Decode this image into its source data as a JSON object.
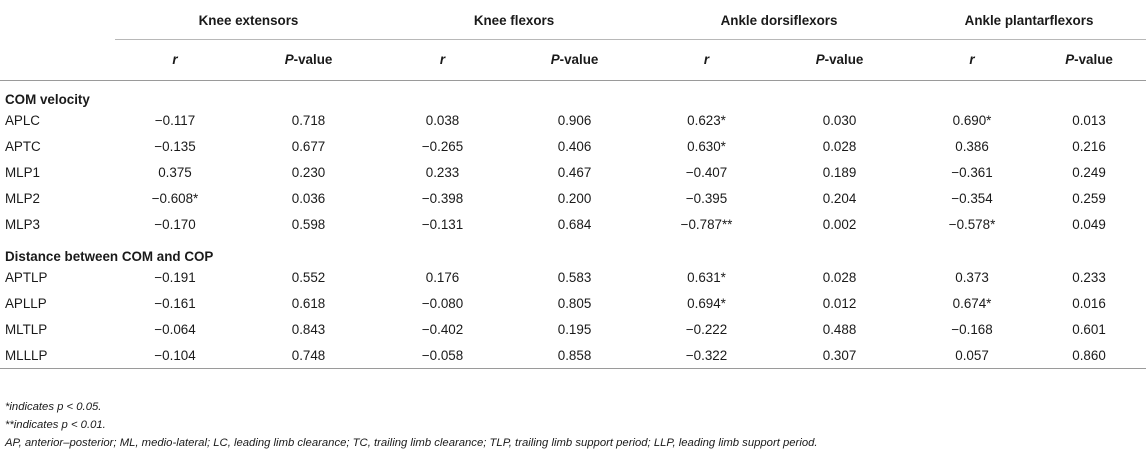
{
  "groups": [
    "Knee extensors",
    "Knee flexors",
    "Ankle dorsiflexors",
    "Ankle plantarflexors"
  ],
  "subheaders": {
    "r": "r",
    "p_prefix": "P",
    "p_suffix": "-value"
  },
  "sections": [
    {
      "title": "COM velocity",
      "rows": [
        {
          "label": "APLC",
          "values": [
            "−0.117",
            "0.718",
            "0.038",
            "0.906",
            "0.623*",
            "0.030",
            "0.690*",
            "0.013"
          ]
        },
        {
          "label": "APTC",
          "values": [
            "−0.135",
            "0.677",
            "−0.265",
            "0.406",
            "0.630*",
            "0.028",
            "0.386",
            "0.216"
          ]
        },
        {
          "label": "MLP1",
          "values": [
            "0.375",
            "0.230",
            "0.233",
            "0.467",
            "−0.407",
            "0.189",
            "−0.361",
            "0.249"
          ]
        },
        {
          "label": "MLP2",
          "values": [
            "−0.608*",
            "0.036",
            "−0.398",
            "0.200",
            "−0.395",
            "0.204",
            "−0.354",
            "0.259"
          ]
        },
        {
          "label": "MLP3",
          "values": [
            "−0.170",
            "0.598",
            "−0.131",
            "0.684",
            "−0.787**",
            "0.002",
            "−0.578*",
            "0.049"
          ]
        }
      ]
    },
    {
      "title": "Distance between COM and COP",
      "rows": [
        {
          "label": "APTLP",
          "values": [
            "−0.191",
            "0.552",
            "0.176",
            "0.583",
            "0.631*",
            "0.028",
            "0.373",
            "0.233"
          ]
        },
        {
          "label": "APLLP",
          "values": [
            "−0.161",
            "0.618",
            "−0.080",
            "0.805",
            "0.694*",
            "0.012",
            "0.674*",
            "0.016"
          ]
        },
        {
          "label": "MLTLP",
          "values": [
            "−0.064",
            "0.843",
            "−0.402",
            "0.195",
            "−0.222",
            "0.488",
            "−0.168",
            "0.601"
          ]
        },
        {
          "label": "MLLLP",
          "values": [
            "−0.104",
            "0.748",
            "−0.058",
            "0.858",
            "−0.322",
            "0.307",
            "0.057",
            "0.860"
          ]
        }
      ]
    }
  ],
  "footnotes": [
    "*indicates p < 0.05.",
    "**indicates p < 0.01.",
    "AP, anterior–posterior; ML, medio-lateral; LC, leading limb clearance; TC, trailing limb clearance; TLP, trailing limb support period; LLP, leading limb support period."
  ]
}
